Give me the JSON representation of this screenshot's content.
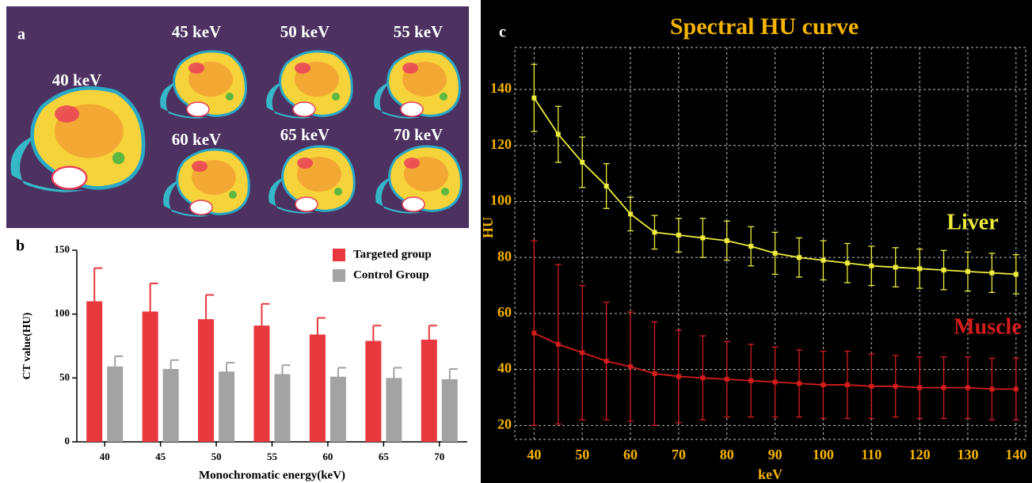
{
  "panel_a": {
    "label": "a",
    "images": [
      "40 keV",
      "45 keV",
      "50 keV",
      "55 keV",
      "60 keV",
      "65 keV",
      "70 keV"
    ]
  },
  "chart_data": [
    {
      "type": "bar",
      "panel_label": "b",
      "y_label": "CT value(HU)",
      "x_label": "Monochromatic energy(keV)",
      "categories": [
        "40",
        "45",
        "50",
        "55",
        "60",
        "65",
        "70"
      ],
      "series": [
        {
          "name": "Targeted group",
          "color": "#e8383d",
          "values": [
            110,
            102,
            96,
            91,
            84,
            79,
            80
          ],
          "errors": [
            26,
            22,
            19,
            17,
            13,
            12,
            11
          ]
        },
        {
          "name": "Control Group",
          "color": "#a3a3a3",
          "values": [
            59,
            57,
            55,
            53,
            51,
            50,
            49
          ],
          "errors": [
            8,
            7,
            7,
            7,
            7,
            8,
            8
          ]
        }
      ],
      "ylim": [
        0,
        150
      ],
      "yticks": [
        0,
        50,
        100,
        150
      ],
      "legend": "top-right"
    },
    {
      "type": "line",
      "panel_label": "c",
      "title": "Spectral HU curve",
      "x_label": "keV",
      "y_label": "HU",
      "x": [
        40,
        45,
        50,
        55,
        60,
        65,
        70,
        75,
        80,
        85,
        90,
        95,
        100,
        105,
        110,
        115,
        120,
        125,
        130,
        135,
        140
      ],
      "series": [
        {
          "name": "Liver",
          "color": "#ecec3c",
          "values": [
            137,
            124,
            114,
            105.5,
            95.5,
            89,
            88,
            87,
            86,
            84,
            81.5,
            80,
            79,
            78,
            77,
            76.5,
            76,
            75.5,
            75,
            74.5,
            74
          ],
          "errors": [
            12,
            10,
            9,
            8,
            6,
            6,
            6,
            7,
            7,
            7,
            7.5,
            7,
            7,
            7,
            7,
            7,
            7,
            7,
            7,
            7,
            7
          ]
        },
        {
          "name": "Muscle",
          "color": "#d41c1c",
          "values": [
            53,
            49,
            46,
            43,
            41,
            38.5,
            37.5,
            37,
            36.5,
            36,
            35.5,
            35,
            34.5,
            34.5,
            34,
            34,
            33.5,
            33.5,
            33.5,
            33,
            33
          ],
          "errors": [
            33,
            28.5,
            24,
            21,
            19.5,
            18.5,
            16.5,
            15,
            13.5,
            13,
            12.5,
            12,
            12,
            12,
            11.5,
            11,
            11,
            11,
            11,
            11,
            11
          ]
        }
      ],
      "xlim": [
        36,
        142
      ],
      "ylim": [
        15,
        155
      ],
      "xticks": [
        40,
        50,
        60,
        70,
        80,
        90,
        100,
        110,
        120,
        130,
        140
      ],
      "yticks": [
        20,
        40,
        60,
        80,
        100,
        120,
        140
      ],
      "grid": true
    }
  ]
}
